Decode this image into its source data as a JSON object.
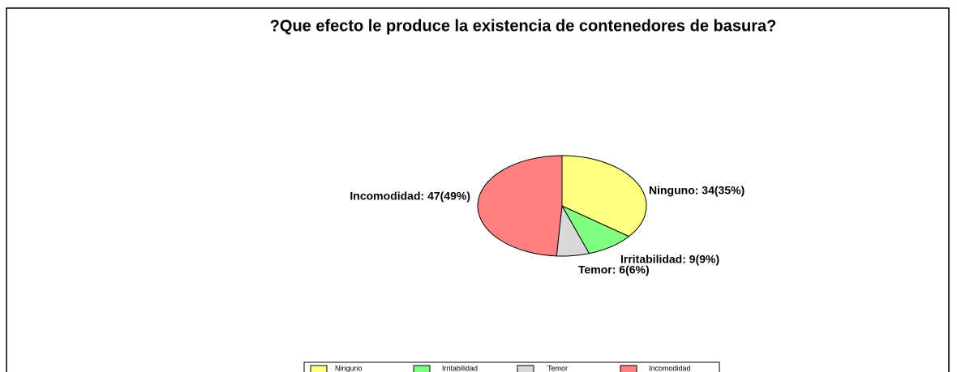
{
  "chart_data": {
    "type": "pie",
    "title": "?Que efecto le produce la existencia de contenedores de basura?",
    "categories": [
      "Ninguno",
      "Irritabilidad",
      "Temor",
      "Incomodidad"
    ],
    "values": [
      34,
      9,
      6,
      47
    ],
    "value_labels": [
      "Ninguno: 34(35%)",
      "Irritabilidad: 9(9%)",
      "Temor: 6(6%)",
      "Incomodidad: 47(49%)"
    ],
    "colors": [
      "#ffff80",
      "#80ff80",
      "#d9d9d9",
      "#ff8080"
    ],
    "legend": "bottom"
  }
}
